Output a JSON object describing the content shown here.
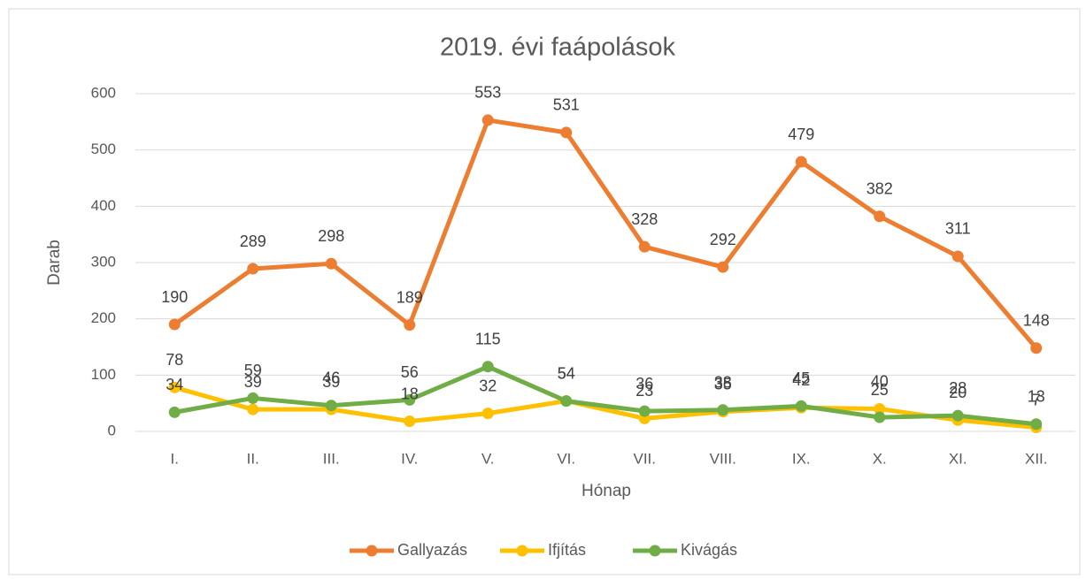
{
  "chart_data": {
    "type": "line",
    "title": "2019. évi faápolások",
    "x_label": "Hónap",
    "y_label": "Darab",
    "categories": [
      "I.",
      "II.",
      "III.",
      "IV.",
      "V.",
      "VI.",
      "VII.",
      "VIII.",
      "IX.",
      "X.",
      "XI.",
      "XII."
    ],
    "series": [
      {
        "name": "Gallyazás",
        "color": "#ed7d31",
        "values": [
          190,
          289,
          298,
          189,
          553,
          531,
          328,
          292,
          479,
          382,
          311,
          148
        ]
      },
      {
        "name": "Ifjítás",
        "color": "#ffc000",
        "values": [
          78,
          39,
          39,
          18,
          32,
          54,
          23,
          35,
          42,
          40,
          20,
          7
        ]
      },
      {
        "name": "Kivágás",
        "color": "#70ad47",
        "values": [
          34,
          59,
          46,
          56,
          115,
          54,
          36,
          38,
          45,
          25,
          28,
          13
        ]
      }
    ],
    "ylim": [
      0,
      600
    ],
    "yticks": [
      0,
      100,
      200,
      300,
      400,
      500,
      600
    ],
    "grid": true,
    "legend": "bottom"
  }
}
